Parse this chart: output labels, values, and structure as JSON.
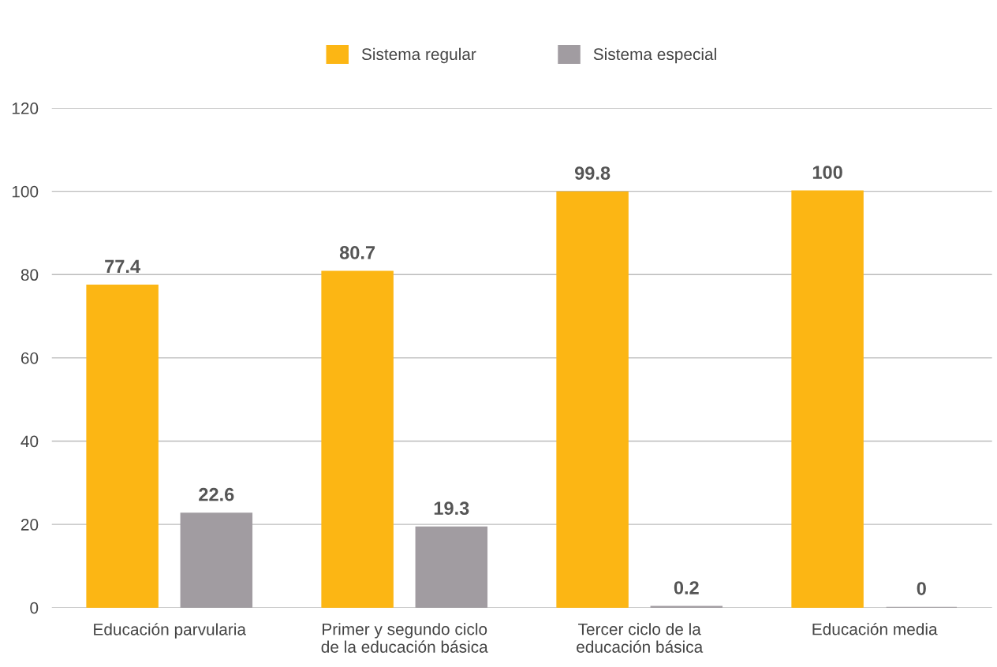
{
  "chart_data": {
    "type": "bar",
    "categories": [
      "Educación parvularia",
      "Primer y segundo ciclo\nde la educación básica",
      "Tercer ciclo de la\neducación básica",
      "Educación media"
    ],
    "series": [
      {
        "name": "Sistema regular",
        "color": "#fcb614",
        "values": [
          77.4,
          80.7,
          99.8,
          100
        ]
      },
      {
        "name": "Sistema especial",
        "color": "#a19ca1",
        "values": [
          22.6,
          19.3,
          0.2,
          0
        ]
      }
    ],
    "ylim": [
      0,
      120
    ],
    "yticks": [
      0,
      20,
      40,
      60,
      80,
      100,
      120
    ],
    "grid": "y",
    "legend": "top",
    "data_labels": true
  }
}
